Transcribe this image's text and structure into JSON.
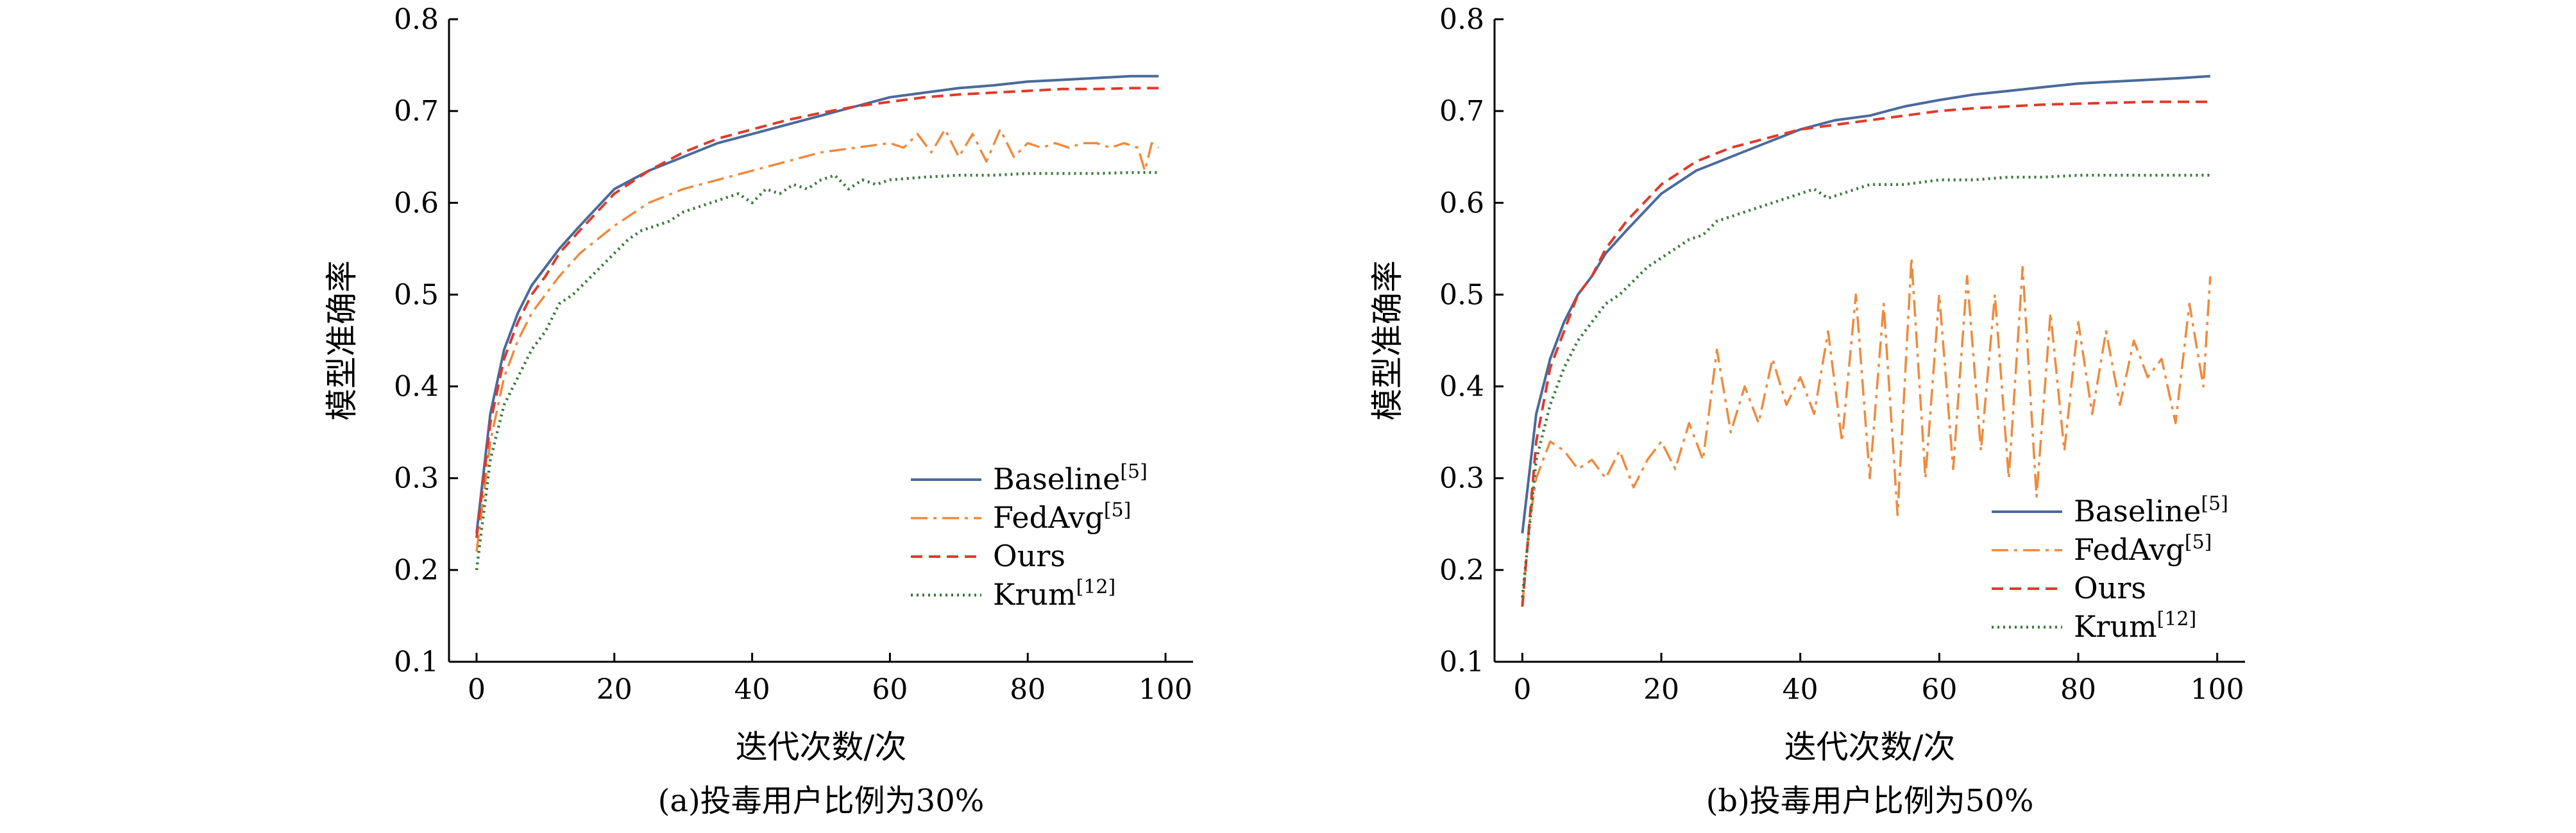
{
  "colors": {
    "Baseline": "#4a6a9a",
    "FedAvg": "#ef8a3c",
    "Ours": "#e03a2c",
    "Krum": "#3a7a3a"
  },
  "chart_data": [
    {
      "type": "line",
      "caption": "(a)投毒用户比例为30%",
      "xlabel": "迭代次数/次",
      "ylabel": "模型准确率",
      "xlim": [
        -4,
        104
      ],
      "ylim": [
        0.1,
        0.8
      ],
      "xticks": [
        "0",
        "20",
        "40",
        "60",
        "80",
        "100"
      ],
      "yticks": [
        "0.1",
        "0.2",
        "0.3",
        "0.4",
        "0.5",
        "0.6",
        "0.7",
        "0.8"
      ],
      "legend_position": "lower-right",
      "legend": [
        {
          "name": "Baseline",
          "ref": "[5]",
          "style": "solid"
        },
        {
          "name": "FedAvg",
          "ref": "[5]",
          "style": "dashdot"
        },
        {
          "name": "Ours",
          "ref": "",
          "style": "dashed"
        },
        {
          "name": "Krum",
          "ref": "[12]",
          "style": "dotted"
        }
      ],
      "series": [
        {
          "name": "Baseline",
          "style": "solid",
          "x": [
            0,
            2,
            4,
            6,
            8,
            10,
            12,
            15,
            20,
            25,
            30,
            35,
            40,
            45,
            50,
            55,
            60,
            65,
            70,
            75,
            80,
            85,
            90,
            95,
            99
          ],
          "y": [
            0.24,
            0.37,
            0.44,
            0.48,
            0.51,
            0.53,
            0.55,
            0.575,
            0.615,
            0.635,
            0.65,
            0.665,
            0.675,
            0.685,
            0.695,
            0.705,
            0.715,
            0.72,
            0.725,
            0.728,
            0.732,
            0.734,
            0.736,
            0.738,
            0.738
          ]
        },
        {
          "name": "FedAvg",
          "style": "dashdot",
          "x": [
            0,
            2,
            4,
            6,
            8,
            10,
            12,
            15,
            20,
            25,
            30,
            35,
            40,
            45,
            50,
            55,
            60,
            62,
            64,
            66,
            68,
            70,
            72,
            74,
            76,
            78,
            80,
            82,
            84,
            86,
            88,
            90,
            92,
            94,
            96,
            97,
            98,
            99
          ],
          "y": [
            0.22,
            0.34,
            0.41,
            0.45,
            0.48,
            0.5,
            0.52,
            0.545,
            0.575,
            0.6,
            0.615,
            0.625,
            0.635,
            0.645,
            0.655,
            0.66,
            0.665,
            0.66,
            0.675,
            0.655,
            0.68,
            0.65,
            0.675,
            0.645,
            0.68,
            0.65,
            0.665,
            0.66,
            0.665,
            0.66,
            0.665,
            0.665,
            0.66,
            0.665,
            0.66,
            0.635,
            0.665,
            0.66
          ]
        },
        {
          "name": "Ours",
          "style": "dashed",
          "x": [
            0,
            2,
            4,
            6,
            8,
            10,
            12,
            15,
            20,
            25,
            30,
            35,
            40,
            45,
            50,
            55,
            60,
            65,
            70,
            75,
            80,
            85,
            90,
            95,
            99
          ],
          "y": [
            0.235,
            0.36,
            0.43,
            0.47,
            0.5,
            0.52,
            0.545,
            0.57,
            0.61,
            0.635,
            0.655,
            0.67,
            0.68,
            0.69,
            0.698,
            0.705,
            0.71,
            0.715,
            0.718,
            0.72,
            0.722,
            0.724,
            0.724,
            0.725,
            0.725
          ]
        },
        {
          "name": "Krum",
          "style": "dotted",
          "x": [
            0,
            2,
            4,
            6,
            8,
            10,
            12,
            14,
            16,
            18,
            20,
            22,
            24,
            26,
            28,
            30,
            32,
            34,
            36,
            38,
            40,
            42,
            44,
            46,
            48,
            50,
            52,
            54,
            56,
            58,
            60,
            65,
            70,
            75,
            80,
            85,
            90,
            95,
            99
          ],
          "y": [
            0.2,
            0.32,
            0.38,
            0.41,
            0.44,
            0.46,
            0.49,
            0.5,
            0.515,
            0.53,
            0.545,
            0.56,
            0.57,
            0.575,
            0.58,
            0.59,
            0.595,
            0.6,
            0.605,
            0.61,
            0.6,
            0.615,
            0.61,
            0.62,
            0.615,
            0.625,
            0.63,
            0.615,
            0.625,
            0.62,
            0.625,
            0.628,
            0.63,
            0.63,
            0.632,
            0.632,
            0.632,
            0.633,
            0.633
          ]
        }
      ]
    },
    {
      "type": "line",
      "caption": "(b)投毒用户比例为50%",
      "xlabel": "迭代次数/次",
      "ylabel": "模型准确率",
      "xlim": [
        -4,
        104
      ],
      "ylim": [
        0.1,
        0.8
      ],
      "xticks": [
        "0",
        "20",
        "40",
        "60",
        "80",
        "100"
      ],
      "yticks": [
        "0.1",
        "0.2",
        "0.3",
        "0.4",
        "0.5",
        "0.6",
        "0.7",
        "0.8"
      ],
      "legend_position": "lower-right",
      "legend": [
        {
          "name": "Baseline",
          "ref": "[5]",
          "style": "solid"
        },
        {
          "name": "FedAvg",
          "ref": "[5]",
          "style": "dashdot"
        },
        {
          "name": "Ours",
          "ref": "",
          "style": "dashed"
        },
        {
          "name": "Krum",
          "ref": "[12]",
          "style": "dotted"
        }
      ],
      "series": [
        {
          "name": "Baseline",
          "style": "solid",
          "x": [
            0,
            2,
            4,
            6,
            8,
            10,
            12,
            15,
            20,
            25,
            30,
            35,
            40,
            45,
            50,
            55,
            60,
            65,
            70,
            75,
            80,
            85,
            90,
            95,
            99
          ],
          "y": [
            0.24,
            0.37,
            0.43,
            0.47,
            0.5,
            0.52,
            0.545,
            0.57,
            0.61,
            0.635,
            0.65,
            0.665,
            0.68,
            0.69,
            0.695,
            0.705,
            0.712,
            0.718,
            0.722,
            0.726,
            0.73,
            0.732,
            0.734,
            0.736,
            0.738
          ]
        },
        {
          "name": "FedAvg",
          "style": "dashdot",
          "x": [
            0,
            1,
            2,
            3,
            4,
            6,
            8,
            10,
            12,
            14,
            16,
            18,
            20,
            22,
            24,
            26,
            28,
            30,
            32,
            34,
            36,
            38,
            40,
            42,
            44,
            46,
            48,
            50,
            52,
            54,
            56,
            58,
            60,
            62,
            64,
            66,
            68,
            70,
            72,
            74,
            76,
            78,
            80,
            82,
            84,
            86,
            88,
            90,
            92,
            94,
            96,
            98,
            99
          ],
          "y": [
            0.16,
            0.25,
            0.3,
            0.32,
            0.34,
            0.33,
            0.31,
            0.32,
            0.3,
            0.33,
            0.29,
            0.32,
            0.34,
            0.31,
            0.36,
            0.32,
            0.44,
            0.35,
            0.4,
            0.36,
            0.43,
            0.38,
            0.41,
            0.37,
            0.46,
            0.34,
            0.5,
            0.3,
            0.49,
            0.26,
            0.54,
            0.3,
            0.5,
            0.31,
            0.52,
            0.33,
            0.5,
            0.3,
            0.53,
            0.28,
            0.48,
            0.33,
            0.47,
            0.37,
            0.46,
            0.38,
            0.45,
            0.41,
            0.43,
            0.36,
            0.49,
            0.4,
            0.52
          ]
        },
        {
          "name": "Ours",
          "style": "dashed",
          "x": [
            0,
            2,
            4,
            6,
            8,
            10,
            12,
            15,
            20,
            25,
            30,
            35,
            40,
            45,
            50,
            55,
            60,
            65,
            70,
            75,
            80,
            85,
            90,
            95,
            99
          ],
          "y": [
            0.16,
            0.34,
            0.42,
            0.46,
            0.5,
            0.52,
            0.55,
            0.58,
            0.62,
            0.645,
            0.66,
            0.67,
            0.68,
            0.685,
            0.69,
            0.695,
            0.7,
            0.703,
            0.705,
            0.707,
            0.708,
            0.709,
            0.71,
            0.71,
            0.71
          ]
        },
        {
          "name": "Krum",
          "style": "dotted",
          "x": [
            0,
            2,
            4,
            6,
            8,
            10,
            12,
            14,
            16,
            18,
            20,
            22,
            24,
            26,
            28,
            30,
            32,
            34,
            36,
            38,
            40,
            42,
            44,
            46,
            48,
            50,
            55,
            60,
            65,
            70,
            75,
            80,
            85,
            90,
            95,
            99
          ],
          "y": [
            0.17,
            0.32,
            0.38,
            0.42,
            0.45,
            0.47,
            0.49,
            0.5,
            0.515,
            0.53,
            0.54,
            0.55,
            0.56,
            0.565,
            0.58,
            0.585,
            0.59,
            0.595,
            0.6,
            0.605,
            0.61,
            0.615,
            0.605,
            0.61,
            0.615,
            0.62,
            0.62,
            0.625,
            0.625,
            0.628,
            0.628,
            0.63,
            0.63,
            0.63,
            0.63,
            0.63
          ]
        }
      ]
    }
  ]
}
